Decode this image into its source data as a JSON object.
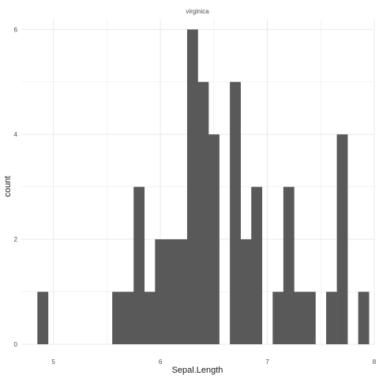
{
  "chart_data": {
    "type": "bar",
    "facet_label": "virginica",
    "xlabel": "Sepal.Length",
    "ylabel": "count",
    "xlim": [
      4.7,
      8.0
    ],
    "ylim": [
      0,
      6.2
    ],
    "x_ticks": [
      5,
      6,
      7,
      8
    ],
    "y_ticks": [
      0,
      2,
      4,
      6
    ],
    "bin_width": 0.1,
    "bins": [
      {
        "x": 4.9,
        "count": 1
      },
      {
        "x": 5.6,
        "count": 1
      },
      {
        "x": 5.7,
        "count": 1
      },
      {
        "x": 5.8,
        "count": 3
      },
      {
        "x": 5.9,
        "count": 1
      },
      {
        "x": 6.0,
        "count": 2
      },
      {
        "x": 6.1,
        "count": 2
      },
      {
        "x": 6.2,
        "count": 2
      },
      {
        "x": 6.3,
        "count": 6
      },
      {
        "x": 6.4,
        "count": 5
      },
      {
        "x": 6.5,
        "count": 4
      },
      {
        "x": 6.7,
        "count": 5
      },
      {
        "x": 6.8,
        "count": 2
      },
      {
        "x": 6.9,
        "count": 3
      },
      {
        "x": 7.1,
        "count": 1
      },
      {
        "x": 7.2,
        "count": 3
      },
      {
        "x": 7.3,
        "count": 1
      },
      {
        "x": 7.4,
        "count": 1
      },
      {
        "x": 7.6,
        "count": 1
      },
      {
        "x": 7.7,
        "count": 4
      },
      {
        "x": 7.9,
        "count": 1
      }
    ],
    "grid": true,
    "bar_color": "#595959",
    "grid_color": "#ebebeb"
  }
}
